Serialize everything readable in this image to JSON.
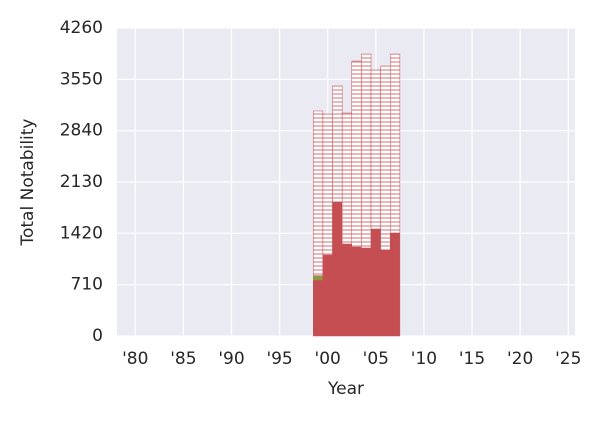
{
  "chart_data": {
    "type": "stacked_bar",
    "x_label": "Year",
    "y_label": "Total Notability",
    "x": [
      1999,
      2000,
      2001,
      2002,
      2003,
      2004,
      2005,
      2006,
      2007
    ],
    "series": [
      {
        "color": "#c44e52",
        "hatch": false,
        "values": [
          775,
          1120,
          1853,
          1272,
          1231,
          1217,
          1480,
          1190,
          1425
        ]
      },
      {
        "color": "#8c9a3c",
        "hatch": false,
        "values": [
          60,
          0,
          0,
          0,
          0,
          0,
          0,
          0,
          0
        ]
      },
      {
        "color": "#c44e52",
        "hatch": true,
        "values": [
          2277,
          1950,
          1605,
          1812,
          2572,
          2683,
          2199,
          2544,
          2475
        ]
      }
    ],
    "xlim": [
      1978.1,
      2025.7
    ],
    "xticks": [
      {
        "value": 1980,
        "label": "'80"
      },
      {
        "value": 1985,
        "label": "'85"
      },
      {
        "value": 1990,
        "label": "'90"
      },
      {
        "value": 1995,
        "label": "'95"
      },
      {
        "value": 2000,
        "label": "'00"
      },
      {
        "value": 2005,
        "label": "'05"
      },
      {
        "value": 2010,
        "label": "'10"
      },
      {
        "value": 2015,
        "label": "'15"
      },
      {
        "value": 2020,
        "label": "'20"
      },
      {
        "value": 2025,
        "label": "'25"
      }
    ],
    "ylim": [
      0,
      4260
    ],
    "yticks": [
      0,
      710,
      1420,
      2130,
      2840,
      3550,
      4260
    ],
    "grid": true,
    "background": "#eaeaf2"
  }
}
